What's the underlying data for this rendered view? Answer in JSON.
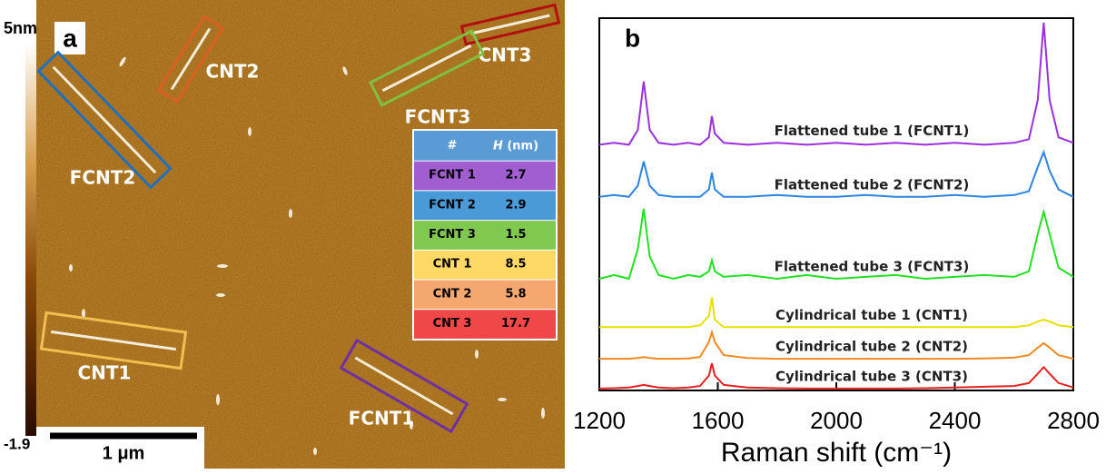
{
  "panel_a": {
    "label": "a",
    "colorbar": {
      "max_label": "5nm",
      "min_label": "-1.9"
    },
    "scale_bar": "1 μm",
    "boxes": [
      {
        "label": "CNT2",
        "color": "#d96020"
      },
      {
        "label": "CNT3",
        "color": "#b01010"
      },
      {
        "label": "FCNT3",
        "color": "#80c040"
      },
      {
        "label": "FCNT2",
        "color": "#2070c0"
      },
      {
        "label": "CNT1",
        "color": "#f0c050"
      },
      {
        "label": "FCNT1",
        "color": "#7030a0"
      }
    ],
    "table": {
      "header": {
        "id": "#",
        "symbol": "H",
        "unit": "(nm)",
        "color": "#5b9bd5"
      },
      "rows": [
        {
          "name": "FCNT 1",
          "height": 2.7,
          "color": "#a05ed0"
        },
        {
          "name": "FCNT 2",
          "height": 2.9,
          "color": "#4a9ad8"
        },
        {
          "name": "FCNT 3",
          "height": 1.5,
          "color": "#80c850"
        },
        {
          "name": "CNT 1",
          "height": 8.5,
          "color": "#ffd966"
        },
        {
          "name": "CNT 2",
          "height": 5.8,
          "color": "#f4a870"
        },
        {
          "name": "CNT 3",
          "height": 17.7,
          "color": "#f04848"
        }
      ]
    }
  },
  "chart_data": {
    "type": "line",
    "label": "b",
    "xlabel": "Raman shift (cm⁻¹)",
    "xlim": [
      1200,
      2800
    ],
    "xticks": [
      1200,
      1600,
      2000,
      2400,
      2800
    ],
    "ylim": [
      0,
      100
    ],
    "x": [
      1200,
      1250,
      1300,
      1330,
      1350,
      1370,
      1400,
      1450,
      1500,
      1540,
      1570,
      1580,
      1590,
      1620,
      1700,
      1800,
      1900,
      2000,
      2100,
      2200,
      2300,
      2400,
      2500,
      2600,
      2650,
      2680,
      2700,
      2720,
      2750,
      2800
    ],
    "series": [
      {
        "name": "Flattened tube 1 (FCNT1)",
        "color": "#9b30e0",
        "values": [
          66,
          66.5,
          66,
          70,
          83,
          70,
          66.5,
          66,
          66.5,
          66,
          68,
          73.7,
          69,
          66.5,
          66,
          66.5,
          66,
          66.5,
          66,
          66.5,
          66,
          66.5,
          66,
          66.5,
          67.5,
          78,
          98.8,
          78,
          68,
          66.5
        ]
      },
      {
        "name": "Flattened tube 2 (FCNT2)",
        "color": "#2a84e0",
        "values": [
          52,
          52.5,
          52,
          55,
          61.5,
          55,
          52.5,
          52,
          52,
          52,
          54,
          58.5,
          54,
          52,
          52,
          52.5,
          52,
          52,
          52.5,
          52,
          52,
          52.5,
          52,
          52.5,
          53.5,
          60,
          64,
          59,
          54,
          52
        ]
      },
      {
        "name": "Flattened tube 3 (FCNT3)",
        "color": "#22e022",
        "values": [
          30,
          31,
          30,
          38,
          48.8,
          36,
          31,
          30,
          31,
          30.5,
          32,
          35,
          32,
          30.5,
          31,
          30,
          31,
          30,
          30.5,
          31,
          30,
          30.5,
          31,
          30.5,
          32,
          42,
          48,
          42,
          33,
          30.5
        ]
      },
      {
        "name": "Cylindrical tube 1 (CNT1)",
        "color": "#e8e000",
        "values": [
          17,
          17,
          17,
          17,
          17,
          17,
          17,
          17,
          17,
          17.5,
          20,
          25,
          19,
          17,
          17,
          17,
          17,
          17,
          17,
          17,
          17,
          17,
          17,
          17,
          17.5,
          18.5,
          19,
          18.5,
          17.5,
          17
        ]
      },
      {
        "name": "Cylindrical tube 2 (CNT2)",
        "color": "#f08a20",
        "values": [
          8.5,
          8.5,
          8.5,
          8.7,
          9,
          8.7,
          8.5,
          8.5,
          8.6,
          9,
          13,
          15.6,
          13,
          9.5,
          8.7,
          8.5,
          8.5,
          8.5,
          8.5,
          8.5,
          8.5,
          8.5,
          8.6,
          8.8,
          9.5,
          11.5,
          12.7,
          11.5,
          9.5,
          8.5
        ]
      },
      {
        "name": "Cylindrical tube 3 (CNT3)",
        "color": "#e82020",
        "values": [
          0.5,
          0.6,
          0.8,
          1.2,
          1.5,
          1.2,
          0.8,
          0.6,
          0.8,
          1.2,
          4,
          7.3,
          4,
          1.5,
          0.8,
          0.6,
          0.5,
          0.5,
          0.5,
          0.5,
          0.6,
          0.8,
          1,
          1.2,
          2,
          4.5,
          6.3,
          4.5,
          2,
          0.8
        ]
      }
    ]
  }
}
